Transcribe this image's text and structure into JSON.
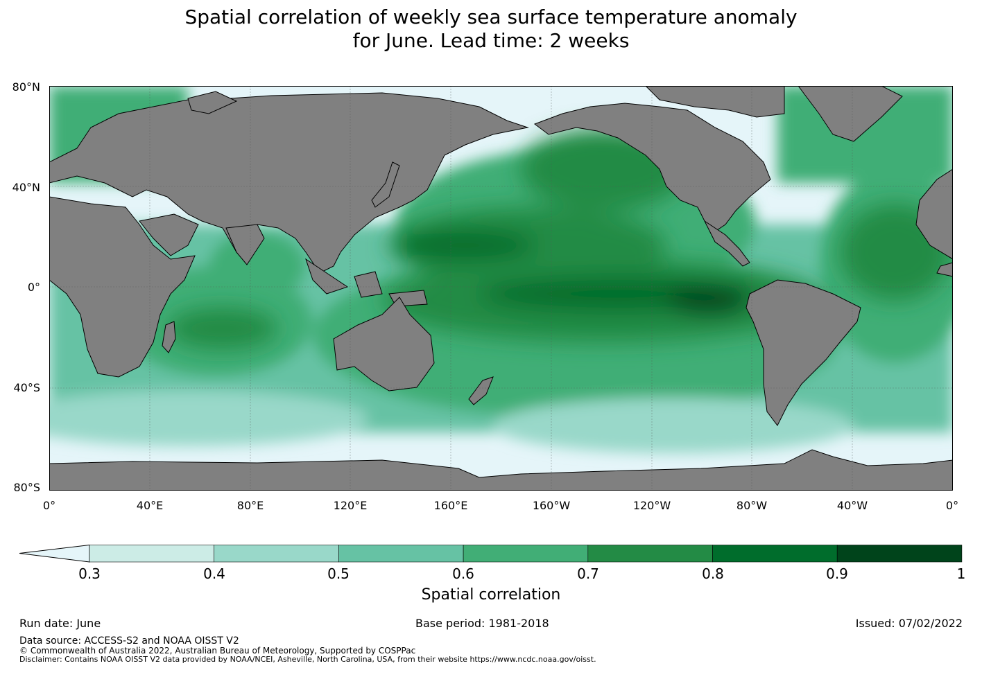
{
  "title_line1": "Spatial correlation of weekly sea surface temperature anomaly",
  "title_line2": "for June. Lead time: 2 weeks",
  "map": {
    "lat_labels": [
      "80°N",
      "40°N",
      "0°",
      "40°S",
      "80°S"
    ],
    "lon_labels": [
      "0°",
      "40°E",
      "80°E",
      "120°E",
      "160°E",
      "160°W",
      "120°W",
      "80°W",
      "40°W",
      "0°"
    ],
    "land_color": "#808080",
    "low_color": "#e5f5f9"
  },
  "colorbar": {
    "ticks": [
      "0.3",
      "0.4",
      "0.5",
      "0.6",
      "0.7",
      "0.8",
      "0.9",
      "1"
    ],
    "colors": [
      "#ccece6",
      "#99d8c9",
      "#66c2a4",
      "#41ae76",
      "#238b45",
      "#006d2c",
      "#00441b"
    ],
    "under_color": "#e5f5f9",
    "label": "Spatial correlation"
  },
  "footer": {
    "run_date": "Run date: June",
    "base_period": "Base period: 1981-2018",
    "issued": "Issued: 07/02/2022",
    "data_source": "Data source: ACCESS-S2 and NOAA OISST V2",
    "copyright": "© Commonwealth of Australia 2022, Australian Bureau of Meteorology, Supported by COSPPac",
    "disclaimer": "Disclaimer: Contains NOAA OISST V2 data provided by NOAA/NCEI, Asheville, North Carolina, USA, from their website https://www.ncdc.noaa.gov/oisst."
  }
}
